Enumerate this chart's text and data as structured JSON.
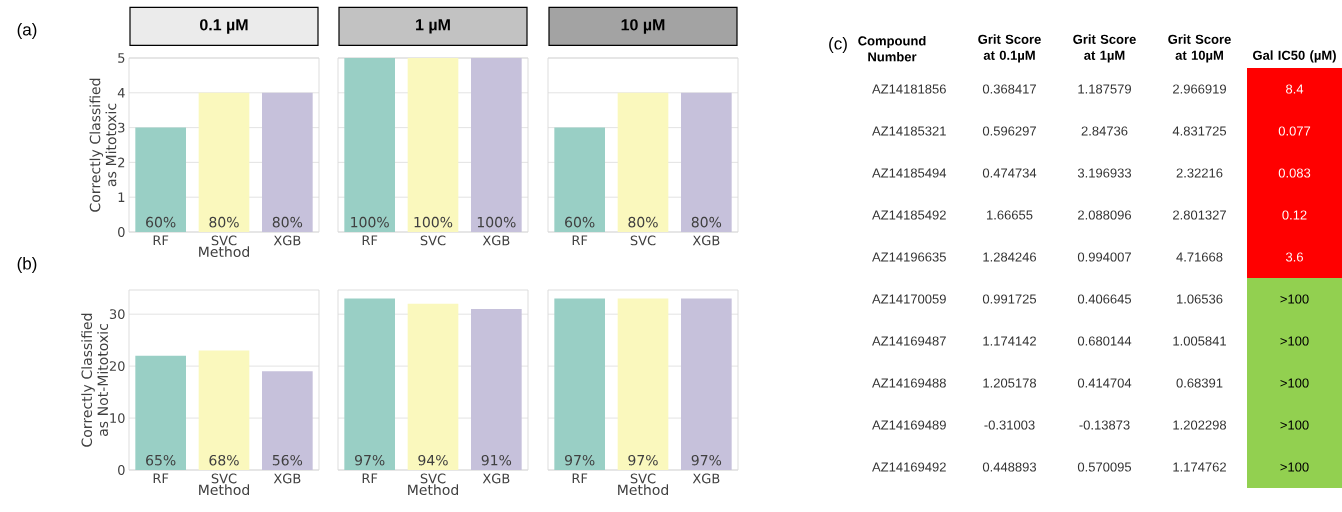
{
  "chart_data": [
    {
      "type": "bar",
      "title": "0.1 µM",
      "categories": [
        "RF",
        "SVC",
        "XGB"
      ],
      "values": [
        3,
        4,
        4
      ],
      "colors": [
        "#99cfc5",
        "#faf8bd",
        "#c6c1db"
      ],
      "xlabel": "Method",
      "ylabel": "Correctly Classified as Mitotoxic",
      "ylim": [
        0,
        5
      ],
      "yticks": [
        0,
        1,
        2,
        3,
        4,
        5
      ],
      "grid": "y",
      "annotations": [
        "(a)",
        {
          "text": "60%",
          "x": "RF",
          "y": 0
        },
        {
          "text": "80%",
          "x": "SVC",
          "y": 0
        },
        {
          "text": "80%",
          "x": "XGB",
          "y": 0
        }
      ]
    },
    {
      "type": "bar",
      "title": "1 µM",
      "categories": [
        "RF",
        "SVC",
        "XGB"
      ],
      "values": [
        5,
        5,
        5
      ],
      "colors": [
        "#99cfc5",
        "#faf8bd",
        "#c6c1db"
      ],
      "ylim": [
        0,
        5
      ],
      "yticks": [
        0,
        1,
        2,
        3,
        4,
        5
      ],
      "grid": "y",
      "tick_labels": "x",
      "annotations": [
        {
          "text": "100%",
          "x": "RF",
          "y": 0
        },
        {
          "text": "100%",
          "x": "SVC",
          "y": 0
        },
        {
          "text": "100%",
          "x": "XGB",
          "y": 0
        }
      ]
    },
    {
      "type": "bar",
      "title": "10 µM",
      "categories": [
        "RF",
        "SVC",
        "XGB"
      ],
      "values": [
        3,
        4,
        4
      ],
      "colors": [
        "#99cfc5",
        "#faf8bd",
        "#c6c1db"
      ],
      "ylim": [
        0,
        5
      ],
      "yticks": [
        0,
        1,
        2,
        3,
        4,
        5
      ],
      "grid": "y",
      "tick_labels": "x",
      "annotations": [
        {
          "text": "60%",
          "x": "RF",
          "y": 0
        },
        {
          "text": "80%",
          "x": "SVC",
          "y": 0
        },
        {
          "text": "80%",
          "x": "XGB",
          "y": 0
        }
      ]
    },
    {
      "type": "bar",
      "categories": [
        "RF",
        "SVC",
        "XGB"
      ],
      "values": [
        22,
        23,
        19
      ],
      "colors": [
        "#99cfc5",
        "#faf8bd",
        "#c6c1db"
      ],
      "xlabel": "Method",
      "ylabel": "Correctly Classified as Not-Mitotoxic",
      "ylim": [
        0,
        34.65
      ],
      "yticks": [
        0,
        10,
        20,
        30
      ],
      "grid": "y",
      "annotations": [
        "(b)",
        {
          "text": "65%",
          "x": "RF",
          "y": 0
        },
        {
          "text": "68%",
          "x": "SVC",
          "y": 0
        },
        {
          "text": "56%",
          "x": "XGB",
          "y": 0
        }
      ]
    },
    {
      "type": "bar",
      "categories": [
        "RF",
        "SVC",
        "XGB"
      ],
      "values": [
        33,
        32,
        31
      ],
      "colors": [
        "#99cfc5",
        "#faf8bd",
        "#c6c1db"
      ],
      "xlabel": "Method",
      "ylim": [
        0,
        34.65
      ],
      "yticks": [
        0,
        10,
        20,
        30
      ],
      "grid": "y",
      "tick_labels": "x",
      "annotations": [
        {
          "text": "97%",
          "x": "RF",
          "y": 0
        },
        {
          "text": "94%",
          "x": "SVC",
          "y": 0
        },
        {
          "text": "91%",
          "x": "XGB",
          "y": 0
        }
      ]
    },
    {
      "type": "bar",
      "categories": [
        "RF",
        "SVC",
        "XGB"
      ],
      "values": [
        33,
        33,
        33
      ],
      "colors": [
        "#99cfc5",
        "#faf8bd",
        "#c6c1db"
      ],
      "xlabel": "Method",
      "ylim": [
        0,
        34.65
      ],
      "yticks": [
        0,
        10,
        20,
        30
      ],
      "grid": "y",
      "tick_labels": "x",
      "annotations": [
        {
          "text": "97%",
          "x": "RF",
          "y": 0
        },
        {
          "text": "97%",
          "x": "SVC",
          "y": 0
        },
        {
          "text": "97%",
          "x": "XGB",
          "y": 0
        }
      ]
    },
    {
      "type": "other",
      "ylabel": "Compound Number",
      "categories": [
        "Grit Score at 0.1µM",
        "Grit Score at 1µM",
        "Grit Score at 10µM",
        "Gal IC50 (µM)"
      ],
      "y_categories": [
        "AZ14181856",
        "AZ14185321",
        "AZ14185494",
        "AZ14185492",
        "AZ14196635",
        "AZ14170059",
        "AZ14169487",
        "AZ14169488",
        "AZ14169489",
        "AZ14169492"
      ],
      "cell_labels": [
        [
          "0.368417",
          "1.187579",
          "2.966919",
          "8.4"
        ],
        [
          "0.596297",
          "2.84736",
          "4.831725",
          "0.077"
        ],
        [
          "0.474734",
          "3.196933",
          "2.32216",
          "0.083"
        ],
        [
          "1.66655",
          "2.088096",
          "2.801327",
          "0.12"
        ],
        [
          "1.284246",
          "0.994007",
          "4.71668",
          "3.6"
        ],
        [
          "0.991725",
          "0.406645",
          "1.06536",
          ">100"
        ],
        [
          "1.174142",
          "0.680144",
          "1.005841",
          ">100"
        ],
        [
          "1.205178",
          "0.414704",
          "0.68391",
          ">100"
        ],
        [
          "-0.31003",
          "-0.13873",
          "1.202298",
          ">100"
        ],
        [
          "0.448893",
          "0.570095",
          "1.174762",
          ">100"
        ]
      ],
      "colors": [
        [
          null,
          null,
          null,
          "#ff0000"
        ],
        [
          null,
          null,
          null,
          "#ff0000"
        ],
        [
          null,
          null,
          null,
          "#ff0000"
        ],
        [
          null,
          null,
          null,
          "#ff0000"
        ],
        [
          null,
          null,
          null,
          "#ff0000"
        ],
        [
          null,
          null,
          null,
          "#92d050"
        ],
        [
          null,
          null,
          null,
          "#92d050"
        ],
        [
          null,
          null,
          null,
          "#92d050"
        ],
        [
          null,
          null,
          null,
          "#92d050"
        ],
        [
          null,
          null,
          null,
          "#92d050"
        ]
      ],
      "annotations": [
        "(c)"
      ]
    }
  ]
}
